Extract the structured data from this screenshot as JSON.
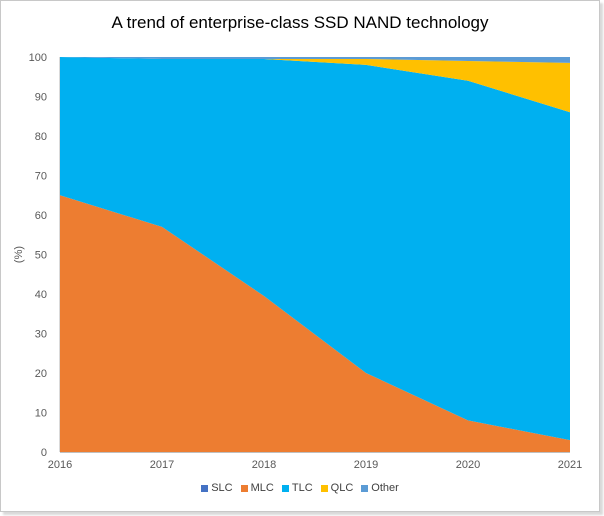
{
  "chart_data": {
    "type": "area",
    "stacked": true,
    "title": "A trend of enterprise-class SSD NAND technology",
    "xlabel": "",
    "ylabel": "(%)",
    "x": [
      "2016",
      "2017",
      "2018",
      "2019",
      "2020",
      "2021"
    ],
    "ylim": [
      0,
      100
    ],
    "yticks": [
      0,
      10,
      20,
      30,
      40,
      50,
      60,
      70,
      80,
      90,
      100
    ],
    "grid": false,
    "legend_position": "bottom",
    "series": [
      {
        "name": "SLC",
        "color": "#4472c4",
        "values": [
          0,
          0,
          0,
          0,
          0,
          0
        ]
      },
      {
        "name": "MLC",
        "color": "#ed7d31",
        "values": [
          65,
          57,
          39.5,
          20,
          8,
          3
        ]
      },
      {
        "name": "TLC",
        "color": "#00b0f0",
        "values": [
          35,
          42.5,
          60,
          78,
          86,
          83
        ]
      },
      {
        "name": "QLC",
        "color": "#ffc000",
        "values": [
          0,
          0,
          0,
          1.5,
          5,
          12.5
        ]
      },
      {
        "name": "Other",
        "color": "#5b9bd5",
        "values": [
          0,
          0.5,
          0.5,
          0.5,
          1,
          1.5
        ]
      }
    ]
  }
}
